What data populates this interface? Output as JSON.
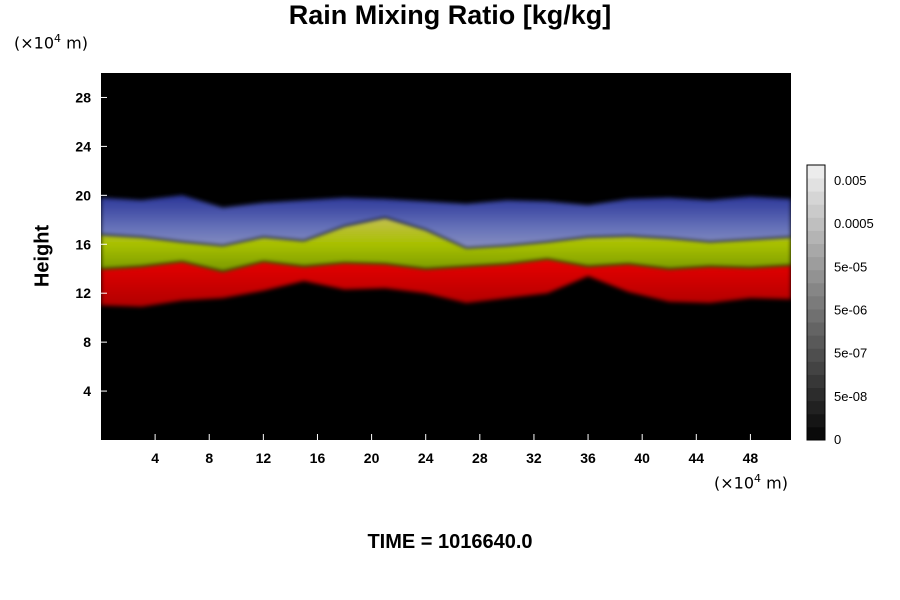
{
  "chart_data": {
    "type": "heatmap",
    "title": "Rain Mixing Ratio [kg/kg]",
    "ylabel": "Height",
    "xlabel": "",
    "x_unit": {
      "prefix": "(×10",
      "exp": "4",
      "suffix": " m)"
    },
    "y_unit": {
      "prefix": "(×10",
      "exp": "4",
      "suffix": " m)"
    },
    "xlim": [
      0,
      51
    ],
    "ylim": [
      0,
      30
    ],
    "x_ticks": [
      "4",
      "8",
      "12",
      "16",
      "20",
      "24",
      "28",
      "32",
      "36",
      "40",
      "44",
      "48"
    ],
    "y_ticks": [
      "4",
      "8",
      "12",
      "16",
      "20",
      "24",
      "28"
    ],
    "time_label": "TIME = 1016640.0",
    "colorbar": {
      "levels": 21,
      "tick_labels": [
        "0",
        "5e-08",
        "5e-07",
        "5e-06",
        "5e-05",
        "0.0005",
        "0.005"
      ]
    },
    "layers": [
      {
        "name": "red",
        "color": "#d60000",
        "bottom": [
          11.0,
          10.9,
          11.4,
          11.6,
          12.2,
          13.0,
          12.3,
          12.4,
          12.0,
          11.2,
          11.6,
          12.0,
          13.4,
          12.1,
          11.3,
          11.2,
          11.6,
          11.5
        ],
        "top": [
          14.0,
          14.2,
          14.6,
          13.8,
          14.6,
          14.2,
          14.5,
          14.4,
          14.0,
          14.2,
          14.4,
          14.8,
          14.2,
          14.4,
          14.0,
          14.2,
          14.1,
          14.3
        ]
      },
      {
        "name": "yellow",
        "color": "#b8c800",
        "bottom": [
          14.0,
          14.2,
          14.6,
          13.8,
          14.6,
          14.2,
          14.5,
          14.4,
          14.0,
          14.2,
          14.4,
          14.8,
          14.2,
          14.4,
          14.0,
          14.2,
          14.1,
          14.3
        ],
        "top": [
          16.8,
          16.6,
          16.2,
          15.9,
          16.6,
          16.3,
          17.5,
          18.2,
          17.2,
          15.7,
          15.9,
          16.2,
          16.6,
          16.7,
          16.5,
          16.2,
          16.4,
          16.6
        ]
      },
      {
        "name": "blue",
        "color": "#3848a8",
        "bottom": [
          16.8,
          16.6,
          16.2,
          15.9,
          16.6,
          16.3,
          17.5,
          18.2,
          17.2,
          15.7,
          15.9,
          16.2,
          16.6,
          16.7,
          16.5,
          16.2,
          16.4,
          16.6
        ],
        "top": [
          19.8,
          19.6,
          20.0,
          19.0,
          19.4,
          19.6,
          19.8,
          19.7,
          19.5,
          19.3,
          19.6,
          19.5,
          19.2,
          19.7,
          19.8,
          19.6,
          19.9,
          19.7
        ]
      }
    ]
  }
}
